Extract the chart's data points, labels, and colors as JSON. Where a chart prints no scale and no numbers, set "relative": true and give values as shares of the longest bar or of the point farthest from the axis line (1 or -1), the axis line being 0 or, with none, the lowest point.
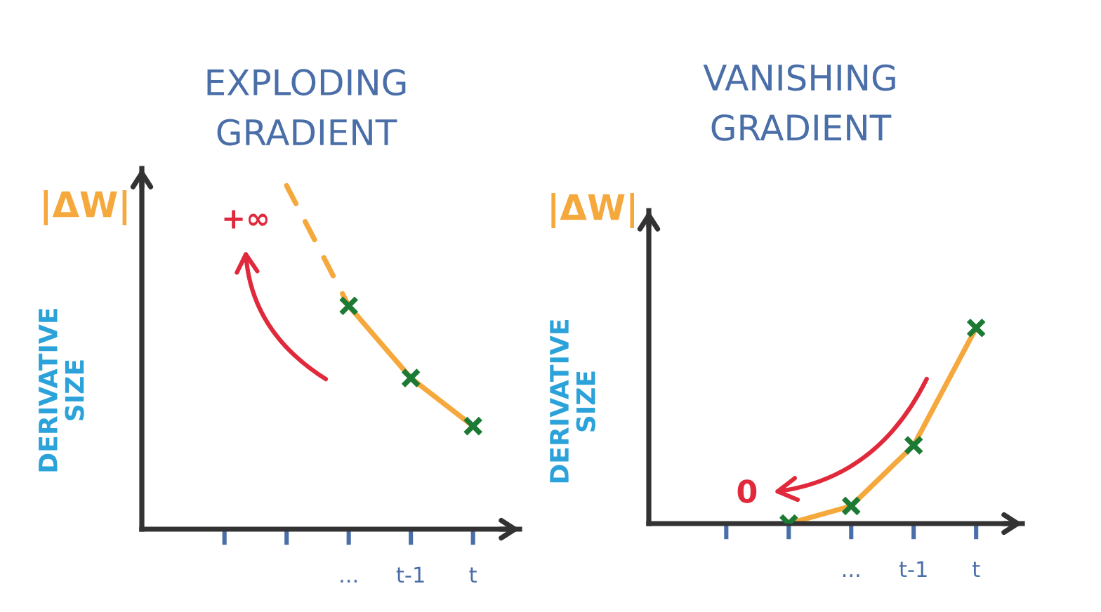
{
  "chart_data": [
    {
      "type": "line",
      "title": "EXPLODING\nGRADIENT",
      "ylabel": "DERIVATIVE\nSIZE",
      "categories": [
        null,
        null,
        "...",
        "t-1",
        "t"
      ],
      "relative": true,
      "tick_labels": "x",
      "series": [
        {
          "color": "#f5a83c",
          "line_style": "dashed",
          "values": [
            null,
            1.0,
            0.65,
            null,
            null
          ]
        },
        {
          "color": "#f5a83c",
          "line_style": "solid",
          "values": [
            null,
            null,
            0.65,
            0.44,
            0.3
          ]
        },
        {
          "type": "scatter",
          "color": "#1c7a35",
          "marker": "cross",
          "values": [
            null,
            null,
            0.65,
            0.44,
            0.3
          ]
        }
      ],
      "annotations": [
        "|ΔW|",
        "+∞"
      ]
    },
    {
      "type": "line",
      "title": "VANISHING\nGRADIENT",
      "ylabel": "DERIVATIVE\nSIZE",
      "categories": [
        null,
        null,
        "...",
        "t-1",
        "t"
      ],
      "relative": true,
      "tick_labels": "x",
      "series": [
        {
          "color": "#f5a83c",
          "line_style": "solid",
          "values": [
            null,
            0,
            0.09,
            0.4,
            1.0
          ]
        },
        {
          "type": "scatter",
          "color": "#1c7a35",
          "marker": "cross",
          "values": [
            null,
            0,
            0.09,
            0.4,
            1.0
          ]
        }
      ],
      "annotations": [
        "|ΔW|",
        "0"
      ]
    }
  ]
}
